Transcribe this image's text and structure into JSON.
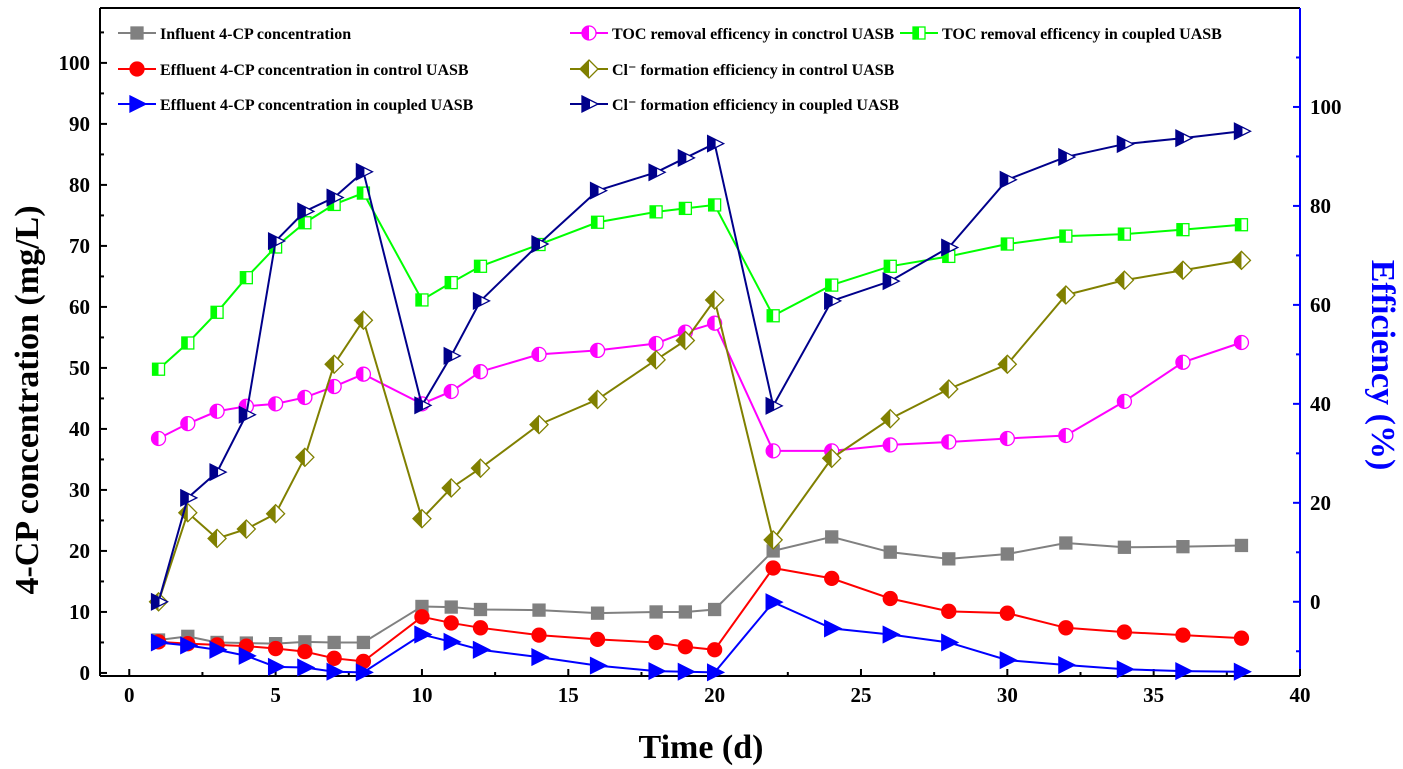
{
  "chart_data": {
    "type": "line",
    "xlabel": "Time (d)",
    "ylabel_left": "4-CP concentration (mg/L)",
    "ylabel_right": "Efficiency (%)",
    "xlim": [
      -1,
      40
    ],
    "ylim_left": [
      -0.5,
      109
    ],
    "ylim_right": [
      -15,
      120
    ],
    "x_ticks": [
      0,
      5,
      10,
      15,
      20,
      25,
      30,
      35,
      40
    ],
    "y_left_ticks": [
      0,
      10,
      20,
      30,
      40,
      50,
      60,
      70,
      80,
      90,
      100
    ],
    "y_right_ticks": [
      0,
      20,
      40,
      60,
      80,
      100
    ],
    "grid": false,
    "legend_position": "top",
    "series": [
      {
        "name": "Influent  4-CP concentration",
        "axis": "left",
        "color": "#808080",
        "marker": "square",
        "x": [
          1,
          2,
          3,
          4,
          5,
          6,
          7,
          8,
          10,
          11,
          12,
          14,
          16,
          18,
          19,
          20,
          22,
          24,
          26,
          28,
          30,
          32,
          34,
          36,
          38
        ],
        "y": [
          5.4,
          6.0,
          5.0,
          4.9,
          4.8,
          5.1,
          5.0,
          5.0,
          10.9,
          10.8,
          10.4,
          10.3,
          9.8,
          10.0,
          10.0,
          10.4,
          20.0,
          22.3,
          19.8,
          18.7,
          19.5,
          21.3,
          20.6,
          20.7,
          20.9
        ]
      },
      {
        "name": "Effluent 4-CP concentration in control UASB",
        "axis": "left",
        "color": "#ff0000",
        "marker": "circle",
        "x": [
          1,
          2,
          3,
          4,
          5,
          6,
          7,
          8,
          10,
          11,
          12,
          14,
          16,
          18,
          19,
          20,
          22,
          24,
          26,
          28,
          30,
          32,
          34,
          36,
          38
        ],
        "y": [
          5.1,
          4.8,
          4.6,
          4.4,
          4.0,
          3.5,
          2.4,
          1.9,
          9.2,
          8.2,
          7.4,
          6.2,
          5.5,
          5.0,
          4.3,
          3.8,
          17.2,
          15.5,
          12.2,
          10.1,
          9.8,
          7.4,
          6.7,
          6.2,
          5.7
        ]
      },
      {
        "name": "Effluent 4-CP concentration in coupled UASB",
        "axis": "left",
        "color": "#0000ff",
        "marker": "triangle-right",
        "x": [
          1,
          2,
          3,
          4,
          5,
          6,
          7,
          8,
          10,
          11,
          12,
          14,
          16,
          18,
          19,
          20,
          22,
          24,
          26,
          28,
          30,
          32,
          34,
          36,
          38
        ],
        "y": [
          5.0,
          4.5,
          3.8,
          2.8,
          1.0,
          0.9,
          0.2,
          0.1,
          6.3,
          5.1,
          3.8,
          2.6,
          1.2,
          0.3,
          0.2,
          0.1,
          11.6,
          7.3,
          6.3,
          5.0,
          2.1,
          1.3,
          0.6,
          0.3,
          0.2
        ]
      },
      {
        "name": "TOC removal efficency in conctrol UASB",
        "axis": "right",
        "color": "#ff00ff",
        "marker": "circle-half",
        "x": [
          1,
          2,
          3,
          4,
          5,
          6,
          7,
          8,
          10,
          11,
          12,
          14,
          16,
          18,
          19,
          20,
          22,
          24,
          26,
          28,
          30,
          32,
          34,
          36,
          38
        ],
        "y": [
          33,
          36,
          38.5,
          39.5,
          40,
          41.3,
          43.5,
          46,
          40,
          42.5,
          46.5,
          50,
          50.8,
          52.2,
          54.5,
          56.3,
          30.5,
          30.5,
          31.7,
          32.3,
          33,
          33.6,
          40.5,
          48.4,
          52.4
        ]
      },
      {
        "name": "Cl⁻ formation efficiency in control UASB",
        "axis": "right",
        "color": "#808000",
        "marker": "diamond-half",
        "x": [
          1,
          2,
          3,
          4,
          5,
          6,
          7,
          8,
          10,
          11,
          12,
          14,
          16,
          18,
          19,
          20,
          22,
          24,
          26,
          28,
          30,
          32,
          34,
          36,
          38
        ],
        "y": [
          0,
          18,
          12.8,
          14.7,
          17.8,
          29.2,
          48,
          56.9,
          16.8,
          23,
          27,
          35.8,
          40.9,
          48.9,
          52.8,
          61,
          12.5,
          29,
          37,
          43,
          48,
          62,
          65,
          67,
          69
        ]
      },
      {
        "name": "TOC removal efficency in coupled UASB",
        "axis": "right",
        "color": "#00ff00",
        "marker": "square-half",
        "x": [
          1,
          2,
          3,
          4,
          5,
          6,
          7,
          8,
          10,
          11,
          12,
          14,
          16,
          18,
          19,
          20,
          22,
          24,
          26,
          28,
          30,
          32,
          34,
          36,
          38
        ],
        "y": [
          47,
          52.3,
          58.5,
          65.5,
          71.7,
          76.6,
          80.3,
          82.6,
          61,
          64.5,
          67.8,
          72.2,
          76.7,
          78.8,
          79.5,
          80.2,
          57.8,
          64,
          67.8,
          69.8,
          72.3,
          73.9,
          74.3,
          75.2,
          76.2
        ]
      },
      {
        "name": "Cl⁻ formation efficiency in coupled UASB",
        "axis": "right",
        "color": "#00008b",
        "marker": "triangle-right-half",
        "x": [
          1,
          2,
          3,
          4,
          5,
          6,
          7,
          8,
          10,
          11,
          12,
          14,
          16,
          18,
          19,
          20,
          22,
          24,
          26,
          28,
          30,
          32,
          34,
          36,
          38
        ],
        "y": [
          0,
          21,
          26.2,
          37.8,
          72.9,
          78.9,
          81.7,
          86.9,
          39.7,
          49.7,
          60.8,
          72.3,
          83.1,
          86.8,
          89.7,
          92.6,
          39.6,
          60.8,
          64.8,
          71.6,
          85.3,
          89.9,
          92.5,
          93.7,
          95.1
        ]
      }
    ]
  }
}
